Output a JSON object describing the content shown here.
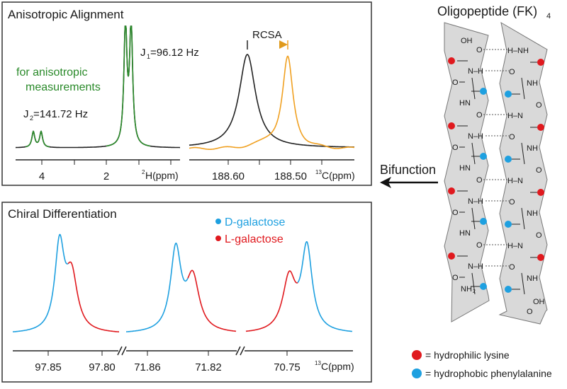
{
  "top_panel": {
    "title": "Anisotropic Alignment",
    "green_note_line1": "for anisotropic",
    "green_note_line2": "measurements",
    "j1_label": "J",
    "j1_sub": "1",
    "j1_value": "=96.12 Hz",
    "j2_label": "J",
    "j2_sub": "2",
    "j2_value": "=141.72 Hz",
    "h_axis": {
      "ticks": [
        "4",
        "2"
      ],
      "unit_sup": "2",
      "unit": "H(ppm)"
    },
    "rcsa_label": "RCSA",
    "c_axis": {
      "ticks": [
        "188.60",
        "188.50"
      ],
      "unit_sup": "13",
      "unit": "C(ppm)"
    }
  },
  "bottom_panel": {
    "title": "Chiral Differentiation",
    "legend": [
      {
        "label": "D-galactose",
        "color": "#1ea0e0"
      },
      {
        "label": "L-galactose",
        "color": "#e0191e"
      }
    ],
    "axis": {
      "ticks": [
        "97.85",
        "97.80",
        "71.86",
        "71.82",
        "70.75"
      ],
      "unit_sup": "13",
      "unit": "C(ppm)"
    }
  },
  "peptide": {
    "title": "Oligopeptide (FK)",
    "title_sub": "4",
    "left_top": "OH",
    "left_bottom": "NH",
    "left_bottom_sub": "2",
    "right_top": "OH"
  },
  "bifunction_label": "Bifunction",
  "legend": [
    {
      "label": "= hydrophilic lysine",
      "color": "#e0191e"
    },
    {
      "label": "= hydrophobic phenylalanine",
      "color": "#1ea0e0"
    }
  ],
  "colors": {
    "green": "#2a8a2a",
    "orange": "#f0a020",
    "blue": "#1ea0e0",
    "red": "#e0191e",
    "strand": "#d9d9d9"
  }
}
